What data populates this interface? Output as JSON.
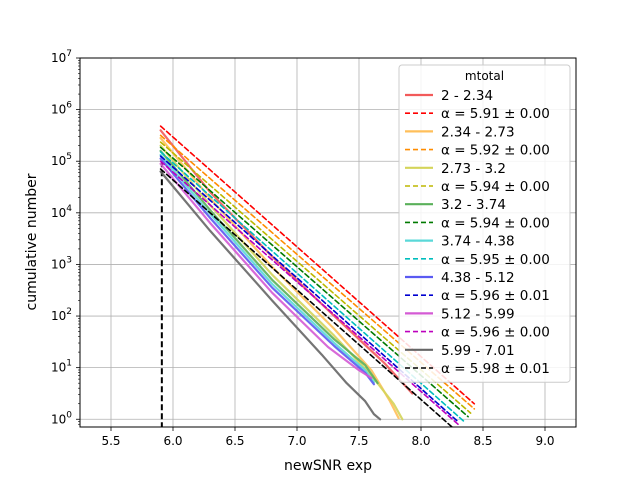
{
  "chart_data": {
    "type": "line",
    "xlabel": "newSNR exp",
    "ylabel": "cumulative number",
    "xlim": [
      5.25,
      9.25
    ],
    "ylim_log10": [
      -0.15,
      7.0
    ],
    "y_scale": "log",
    "grid": true,
    "x_ticks": [
      "5.5",
      "6.0",
      "6.5",
      "7.0",
      "7.5",
      "8.0",
      "8.5",
      "9.0"
    ],
    "x_tick_values": [
      5.5,
      6.0,
      6.5,
      7.0,
      7.5,
      8.0,
      8.5,
      9.0
    ],
    "y_ticks": [
      {
        "base": "10",
        "exp": "0",
        "value": 0
      },
      {
        "base": "10",
        "exp": "1",
        "value": 1
      },
      {
        "base": "10",
        "exp": "2",
        "value": 2
      },
      {
        "base": "10",
        "exp": "3",
        "value": 3
      },
      {
        "base": "10",
        "exp": "4",
        "value": 4
      },
      {
        "base": "10",
        "exp": "5",
        "value": 5
      },
      {
        "base": "10",
        "exp": "6",
        "value": 6
      },
      {
        "base": "10",
        "exp": "7",
        "value": 7
      }
    ],
    "legend": {
      "title": "mtotal",
      "placement": "top-right"
    },
    "threshold_x": 5.91,
    "series": [
      {
        "name": "2 - 2.34",
        "color": "#f25a5a",
        "style": "solid",
        "x": [
          5.9,
          6.3,
          6.8,
          7.3,
          7.7,
          7.93
        ],
        "y": [
          5.6,
          4.4,
          3.15,
          2.0,
          1.1,
          0.5
        ]
      },
      {
        "name": "α = 5.91 ± 0.00",
        "color": "#ff0000",
        "style": "dashed",
        "x": [
          5.9,
          8.43
        ],
        "y": [
          5.68,
          0.3
        ]
      },
      {
        "name": "2.34 - 2.73",
        "color": "#ffbf5a",
        "style": "solid",
        "x": [
          5.9,
          6.3,
          6.8,
          7.3,
          7.6,
          7.75,
          7.82
        ],
        "y": [
          5.45,
          4.28,
          2.95,
          1.75,
          0.95,
          0.35,
          0.02
        ]
      },
      {
        "name": "α = 5.92 ± 0.00",
        "color": "#ff8c00",
        "style": "dashed",
        "x": [
          5.9,
          8.43
        ],
        "y": [
          5.5,
          0.2
        ]
      },
      {
        "name": "2.73 - 3.2",
        "color": "#d4d45a",
        "style": "solid",
        "x": [
          5.9,
          6.3,
          6.8,
          7.3,
          7.6,
          7.78,
          7.85
        ],
        "y": [
          5.3,
          4.15,
          2.8,
          1.62,
          0.85,
          0.3,
          0.0
        ]
      },
      {
        "name": "α = 5.94 ± 0.00",
        "color": "#bdb700",
        "style": "dashed",
        "x": [
          5.9,
          8.4
        ],
        "y": [
          5.37,
          0.12
        ]
      },
      {
        "name": "3.2 - 3.74",
        "color": "#5ab05a",
        "style": "solid",
        "x": [
          5.9,
          6.3,
          6.8,
          7.3,
          7.55,
          7.65
        ],
        "y": [
          5.2,
          4.05,
          2.7,
          1.55,
          1.05,
          0.7
        ]
      },
      {
        "name": "α = 5.94 ± 0.00",
        "color": "#007a00",
        "style": "dashed",
        "x": [
          5.9,
          8.38
        ],
        "y": [
          5.27,
          0.05
        ]
      },
      {
        "name": "3.74 - 4.38",
        "color": "#5ad8d8",
        "style": "solid",
        "x": [
          5.9,
          6.3,
          6.8,
          7.3,
          7.55,
          7.62
        ],
        "y": [
          5.12,
          3.98,
          2.62,
          1.48,
          0.95,
          0.72
        ]
      },
      {
        "name": "α = 5.95 ± 0.00",
        "color": "#00bdbd",
        "style": "dashed",
        "x": [
          5.9,
          8.35
        ],
        "y": [
          5.18,
          -0.05
        ]
      },
      {
        "name": "4.38 - 5.12",
        "color": "#5a5af2",
        "style": "solid",
        "x": [
          5.9,
          6.3,
          6.8,
          7.3,
          7.55,
          7.62
        ],
        "y": [
          5.05,
          3.9,
          2.55,
          1.42,
          0.9,
          0.68
        ]
      },
      {
        "name": "α = 5.96 ± 0.01",
        "color": "#0000d0",
        "style": "dashed",
        "x": [
          5.9,
          8.3
        ],
        "y": [
          5.1,
          -0.05
        ]
      },
      {
        "name": "5.12 - 5.99",
        "color": "#d45ad4",
        "style": "solid",
        "x": [
          5.9,
          6.3,
          6.8,
          7.25,
          7.5,
          7.6
        ],
        "y": [
          4.95,
          3.8,
          2.45,
          1.4,
          0.95,
          0.8
        ]
      },
      {
        "name": "α = 5.96 ± 0.00",
        "color": "#bd00bd",
        "style": "dashed",
        "x": [
          5.9,
          8.3
        ],
        "y": [
          5.0,
          -0.1
        ]
      },
      {
        "name": "5.99 - 7.01",
        "color": "#666666",
        "style": "solid",
        "x": [
          5.9,
          6.3,
          6.8,
          7.2,
          7.4,
          7.55,
          7.62,
          7.67
        ],
        "y": [
          4.8,
          3.65,
          2.3,
          1.25,
          0.7,
          0.35,
          0.1,
          0.0
        ]
      },
      {
        "name": "α = 5.98 ± 0.01",
        "color": "#000000",
        "style": "dashed",
        "x": [
          5.9,
          8.25
        ],
        "y": [
          4.85,
          -0.15
        ]
      }
    ]
  }
}
